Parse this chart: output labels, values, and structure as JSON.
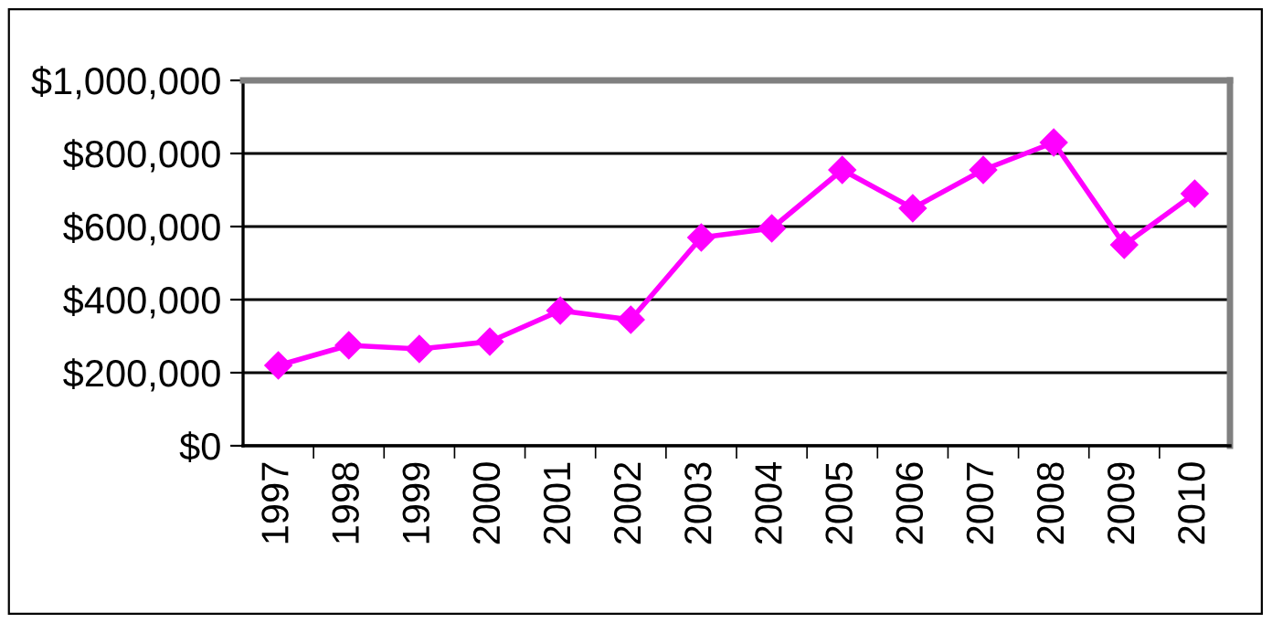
{
  "chart_data": {
    "type": "line",
    "categories": [
      "1997",
      "1998",
      "1999",
      "2000",
      "2001",
      "2002",
      "2003",
      "2004",
      "2005",
      "2006",
      "2007",
      "2008",
      "2009",
      "2010"
    ],
    "series": [
      {
        "color": "#ff00ff",
        "values": [
          220000,
          275000,
          265000,
          285000,
          370000,
          345000,
          570000,
          595000,
          755000,
          650000,
          755000,
          830000,
          550000,
          690000
        ]
      }
    ],
    "ylim": [
      0,
      1000000
    ],
    "yticks": [
      {
        "value": 0,
        "label": "$0"
      },
      {
        "value": 200000,
        "label": "$200,000"
      },
      {
        "value": 400000,
        "label": "$400,000"
      },
      {
        "value": 600000,
        "label": "$600,000"
      },
      {
        "value": 800000,
        "label": "$800,000"
      },
      {
        "value": 1000000,
        "label": "$1,000,000"
      }
    ],
    "grid": "y",
    "marker": "diamond",
    "line_style": "solid"
  }
}
